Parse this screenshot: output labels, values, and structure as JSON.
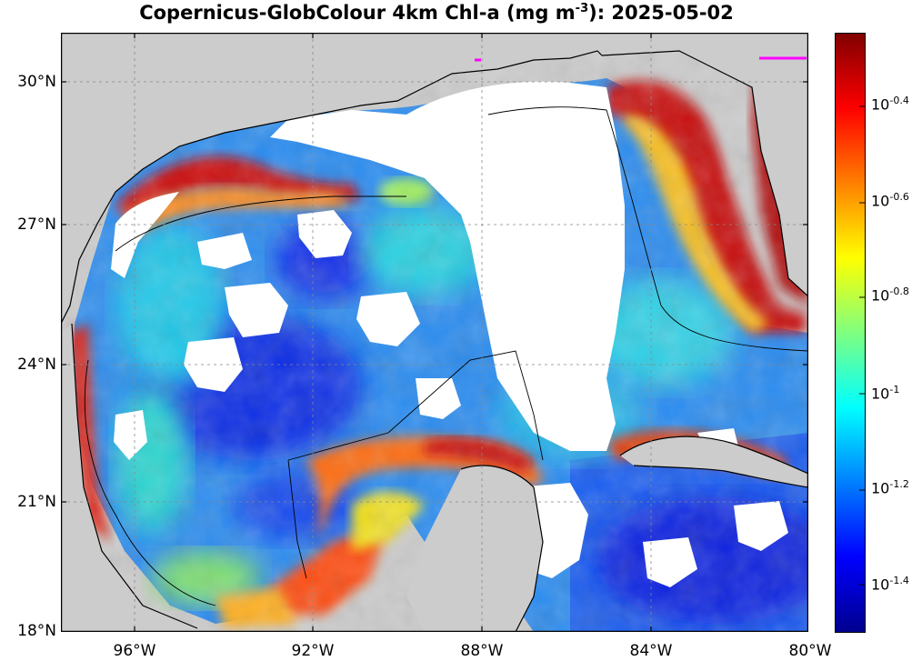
{
  "title": {
    "prefix": "Copernicus-GlobColour 4km Chl-a (mg m",
    "exponent": "-3",
    "suffix": "): 2025-05-02"
  },
  "map": {
    "region": "Gulf of Mexico",
    "lat_range": [
      18,
      31
    ],
    "lon_range": [
      -98,
      -80
    ],
    "lat_labels": [
      "30°N",
      "27°N",
      "24°N",
      "21°N",
      "18°N"
    ],
    "lon_labels": [
      "96°W",
      "92°W",
      "88°W",
      "84°W",
      "80°W"
    ],
    "land_color": "#cccccc",
    "nodata_color": "#ffffff",
    "grid": "dotted"
  },
  "colorbar": {
    "colormap": "jet",
    "scale": "log10",
    "ticks": [
      {
        "base": "10",
        "exp": "-0.4"
      },
      {
        "base": "10",
        "exp": "-0.6"
      },
      {
        "base": "10",
        "exp": "-0.8"
      },
      {
        "base": "10",
        "exp": "-1"
      },
      {
        "base": "10",
        "exp": "-1.2"
      },
      {
        "base": "10",
        "exp": "-1.4"
      }
    ]
  }
}
